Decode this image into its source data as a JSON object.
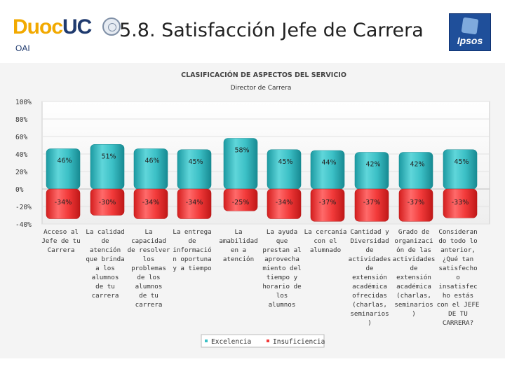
{
  "header": {
    "logo_duoc": "Duoc",
    "logo_uc": "UC",
    "org_label": "OAI",
    "slide_title": "5.8. Satisfacción  Jefe de Carrera",
    "ipsos_label": "Ipsos"
  },
  "chart_data": {
    "type": "bar",
    "title": "CLASIFICACIÓN DE ASPECTOS DEL SERVICIO",
    "subtitle": "Director de Carrera",
    "ylim": [
      -40,
      100
    ],
    "yticks": [
      "100%",
      "80%",
      "60%",
      "40%",
      "20%",
      "0%",
      "-20%",
      "-40%"
    ],
    "ytick_values": [
      100,
      80,
      60,
      40,
      20,
      0,
      -20,
      -40
    ],
    "categories": [
      "Acceso al Jefe de tu Carrera",
      "La calidad de atención que brinda a los alumnos de tu carrera",
      "La capacidad de resolver los problemas de los alumnos de tu carrera",
      "La entrega de información oportuna y a tiempo",
      "La amabilidad en a atención",
      "La ayuda que prestan al aprovechamiento del tiempo y horario de los alumnos",
      "La cercanía con el alumnado",
      "Cantidad y Diversidad de actividades de extensión académica ofrecidas (charlas, seminarios)",
      "Grado de organización de las actividades de extensión académica (charlas, seminarios)",
      "Considerando todo lo anterior, ¿Qué tan satisfecho o insatisfecho estás con el JEFE DE TU CARRERA?"
    ],
    "category_lines": [
      [
        "Acceso al",
        "Jefe de tu",
        "Carrera"
      ],
      [
        "La calidad",
        "de",
        "atención",
        "que brinda",
        "a los",
        "alumnos",
        "de tu",
        "carrera"
      ],
      [
        "La",
        "capacidad",
        "de resolver",
        "los",
        "problemas",
        "de los",
        "alumnos",
        "de tu",
        "carrera"
      ],
      [
        "La entrega",
        "de",
        "informació",
        "n oportuna",
        "y a tiempo"
      ],
      [
        "La",
        "amabilidad",
        "en a",
        "atención"
      ],
      [
        "La ayuda",
        "que",
        "prestan al",
        "aprovecha",
        "miento del",
        "tiempo y",
        "horario de",
        "los",
        "alumnos"
      ],
      [
        "La cercanía",
        "con el",
        "alumnado"
      ],
      [
        "Cantidad y",
        "Diversidad",
        "de",
        "actividades",
        "de",
        "extensión",
        "académica",
        "ofrecidas",
        "(charlas,",
        "seminarios",
        ")"
      ],
      [
        "Grado de",
        "organizaci",
        "ón de las",
        "actividades",
        "de",
        "extensión",
        "académica",
        "(charlas,",
        "seminarios",
        ")"
      ],
      [
        "Consideran",
        "do todo lo",
        "anterior,",
        "¿Qué tan",
        "satisfecho",
        "o",
        "insatisfec",
        "ho estás",
        "con el JEFE",
        "DE TU",
        "CARRERA?"
      ]
    ],
    "series": [
      {
        "name": "Excelencia",
        "color": "#3cc0c6",
        "values": [
          46,
          51,
          46,
          45,
          58,
          45,
          44,
          42,
          42,
          45
        ],
        "labels": [
          "46%",
          "51%",
          "46%",
          "45%",
          "58%",
          "45%",
          "44%",
          "42%",
          "42%",
          "45%"
        ]
      },
      {
        "name": "Insuficiencia",
        "color": "#f23a3a",
        "values": [
          -34,
          -30,
          -34,
          -34,
          -25,
          -34,
          -37,
          -37,
          -37,
          -33
        ],
        "labels": [
          "-34%",
          "-30%",
          "-34%",
          "-34%",
          "-25%",
          "-34%",
          "-37%",
          "-37%",
          "-37%",
          "-33%"
        ]
      }
    ],
    "legend_position": "bottom",
    "grid": true
  }
}
